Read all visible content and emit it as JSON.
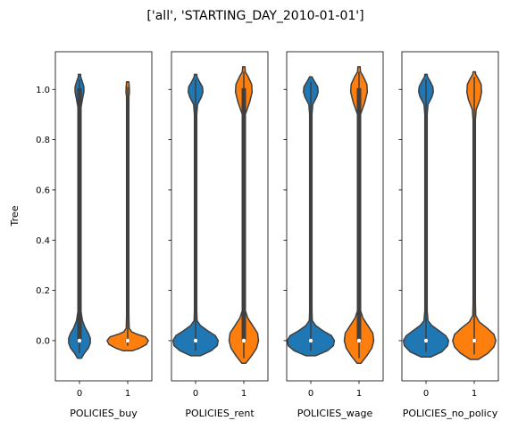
{
  "chart_data": {
    "type": "violin",
    "suptitle": "['all', 'STARTING_DAY_2010-01-01']",
    "ylabel": "Tree",
    "ylim": [
      -0.16,
      1.15
    ],
    "yticks": [
      "0.0",
      "0.2",
      "0.4",
      "0.6",
      "0.8",
      "1.0"
    ],
    "ytick_values": [
      0.0,
      0.2,
      0.4,
      0.6,
      0.8,
      1.0
    ],
    "colors": {
      "0": "#1f77b4",
      "1": "#ff7f0e",
      "edge": "#3f3f3f"
    },
    "panels": [
      {
        "xlabel": "POLICIES_buy",
        "categories": [
          "0",
          "1"
        ],
        "violins": [
          {
            "category": "0",
            "median": 0.0,
            "q1": 0.0,
            "q3": 1.0,
            "lo": -0.07,
            "hi": 1.06,
            "profile": [
              [
                -0.07,
                0.02
              ],
              [
                -0.05,
                0.05
              ],
              [
                -0.03,
                0.09
              ],
              [
                -0.01,
                0.11
              ],
              [
                0.01,
                0.11
              ],
              [
                0.03,
                0.09
              ],
              [
                0.05,
                0.06
              ],
              [
                0.08,
                0.03
              ],
              [
                0.12,
                0.014
              ],
              [
                0.2,
                0.007
              ],
              [
                0.5,
                0.005
              ],
              [
                0.85,
                0.006
              ],
              [
                0.92,
                0.01
              ],
              [
                0.96,
                0.03
              ],
              [
                0.99,
                0.045
              ],
              [
                1.01,
                0.045
              ],
              [
                1.03,
                0.03
              ],
              [
                1.05,
                0.012
              ],
              [
                1.06,
                0.0
              ]
            ]
          },
          {
            "category": "1",
            "median": 0.0,
            "q1": 0.0,
            "q3": 0.0,
            "lo": -0.04,
            "hi": 1.03,
            "profile": [
              [
                -0.04,
                0.05
              ],
              [
                -0.03,
                0.12
              ],
              [
                -0.015,
                0.19
              ],
              [
                0.0,
                0.21
              ],
              [
                0.015,
                0.18
              ],
              [
                0.025,
                0.1
              ],
              [
                0.035,
                0.04
              ],
              [
                0.05,
                0.015
              ],
              [
                0.1,
                0.008
              ],
              [
                0.5,
                0.006
              ],
              [
                0.93,
                0.006
              ],
              [
                0.97,
                0.012
              ],
              [
                0.99,
                0.018
              ],
              [
                1.01,
                0.016
              ],
              [
                1.03,
                0.0
              ]
            ]
          }
        ]
      },
      {
        "xlabel": "POLICIES_rent",
        "categories": [
          "0",
          "1"
        ],
        "violins": [
          {
            "category": "0",
            "median": 0.0,
            "q1": 0.0,
            "q3": 0.0,
            "lo": -0.06,
            "hi": 1.06,
            "profile": [
              [
                -0.06,
                0.05
              ],
              [
                -0.04,
                0.16
              ],
              [
                -0.02,
                0.22
              ],
              [
                0.0,
                0.23
              ],
              [
                0.02,
                0.2
              ],
              [
                0.04,
                0.12
              ],
              [
                0.06,
                0.05
              ],
              [
                0.08,
                0.015
              ],
              [
                0.12,
                0.008
              ],
              [
                0.5,
                0.006
              ],
              [
                0.9,
                0.007
              ],
              [
                0.94,
                0.02
              ],
              [
                0.97,
                0.06
              ],
              [
                0.99,
                0.075
              ],
              [
                1.01,
                0.07
              ],
              [
                1.03,
                0.04
              ],
              [
                1.05,
                0.015
              ],
              [
                1.06,
                0.0
              ]
            ]
          },
          {
            "category": "1",
            "median": 0.0,
            "q1": 0.0,
            "q3": 1.0,
            "lo": -0.09,
            "hi": 1.09,
            "profile": [
              [
                -0.09,
                0.02
              ],
              [
                -0.06,
                0.08
              ],
              [
                -0.03,
                0.13
              ],
              [
                0.0,
                0.15
              ],
              [
                0.03,
                0.14
              ],
              [
                0.06,
                0.09
              ],
              [
                0.09,
                0.04
              ],
              [
                0.12,
                0.015
              ],
              [
                0.2,
                0.007
              ],
              [
                0.5,
                0.005
              ],
              [
                0.85,
                0.006
              ],
              [
                0.9,
                0.015
              ],
              [
                0.95,
                0.06
              ],
              [
                0.99,
                0.085
              ],
              [
                1.02,
                0.08
              ],
              [
                1.05,
                0.045
              ],
              [
                1.07,
                0.015
              ],
              [
                1.09,
                0.0
              ]
            ]
          }
        ]
      },
      {
        "xlabel": "POLICIES_wage",
        "categories": [
          "0",
          "1"
        ],
        "violins": [
          {
            "category": "0",
            "median": 0.0,
            "q1": 0.0,
            "q3": 0.0,
            "lo": -0.06,
            "hi": 1.05,
            "profile": [
              [
                -0.06,
                0.05
              ],
              [
                -0.04,
                0.17
              ],
              [
                -0.02,
                0.23
              ],
              [
                0.0,
                0.24
              ],
              [
                0.02,
                0.21
              ],
              [
                0.04,
                0.12
              ],
              [
                0.06,
                0.05
              ],
              [
                0.08,
                0.015
              ],
              [
                0.12,
                0.008
              ],
              [
                0.5,
                0.006
              ],
              [
                0.9,
                0.007
              ],
              [
                0.94,
                0.02
              ],
              [
                0.97,
                0.06
              ],
              [
                0.99,
                0.075
              ],
              [
                1.01,
                0.07
              ],
              [
                1.03,
                0.04
              ],
              [
                1.05,
                0.0
              ]
            ]
          },
          {
            "category": "1",
            "median": 0.0,
            "q1": 0.0,
            "q3": 1.0,
            "lo": -0.09,
            "hi": 1.09,
            "profile": [
              [
                -0.09,
                0.02
              ],
              [
                -0.06,
                0.08
              ],
              [
                -0.03,
                0.13
              ],
              [
                0.0,
                0.15
              ],
              [
                0.03,
                0.14
              ],
              [
                0.06,
                0.09
              ],
              [
                0.09,
                0.04
              ],
              [
                0.12,
                0.015
              ],
              [
                0.2,
                0.007
              ],
              [
                0.5,
                0.005
              ],
              [
                0.85,
                0.006
              ],
              [
                0.9,
                0.015
              ],
              [
                0.95,
                0.06
              ],
              [
                0.99,
                0.085
              ],
              [
                1.02,
                0.08
              ],
              [
                1.05,
                0.045
              ],
              [
                1.07,
                0.015
              ],
              [
                1.09,
                0.0
              ]
            ]
          }
        ]
      },
      {
        "xlabel": "POLICIES_no_policy",
        "categories": [
          "0",
          "1"
        ],
        "violins": [
          {
            "category": "0",
            "median": 0.0,
            "q1": 0.0,
            "q3": 0.0,
            "lo": -0.065,
            "hi": 1.06,
            "profile": [
              [
                -0.065,
                0.05
              ],
              [
                -0.045,
                0.16
              ],
              [
                -0.02,
                0.22
              ],
              [
                0.0,
                0.23
              ],
              [
                0.02,
                0.2
              ],
              [
                0.04,
                0.13
              ],
              [
                0.06,
                0.06
              ],
              [
                0.08,
                0.02
              ],
              [
                0.12,
                0.008
              ],
              [
                0.5,
                0.006
              ],
              [
                0.9,
                0.007
              ],
              [
                0.94,
                0.02
              ],
              [
                0.97,
                0.06
              ],
              [
                0.99,
                0.075
              ],
              [
                1.01,
                0.07
              ],
              [
                1.03,
                0.045
              ],
              [
                1.05,
                0.015
              ],
              [
                1.06,
                0.0
              ]
            ]
          },
          {
            "category": "1",
            "median": 0.0,
            "q1": 0.0,
            "q3": 0.0,
            "lo": -0.075,
            "hi": 1.07,
            "profile": [
              [
                -0.075,
                0.04
              ],
              [
                -0.05,
                0.14
              ],
              [
                -0.025,
                0.2
              ],
              [
                0.0,
                0.22
              ],
              [
                0.025,
                0.2
              ],
              [
                0.05,
                0.13
              ],
              [
                0.075,
                0.05
              ],
              [
                0.1,
                0.015
              ],
              [
                0.15,
                0.007
              ],
              [
                0.5,
                0.005
              ],
              [
                0.88,
                0.006
              ],
              [
                0.92,
                0.02
              ],
              [
                0.96,
                0.06
              ],
              [
                0.99,
                0.075
              ],
              [
                1.02,
                0.07
              ],
              [
                1.04,
                0.045
              ],
              [
                1.06,
                0.015
              ],
              [
                1.07,
                0.0
              ]
            ]
          }
        ]
      }
    ]
  }
}
